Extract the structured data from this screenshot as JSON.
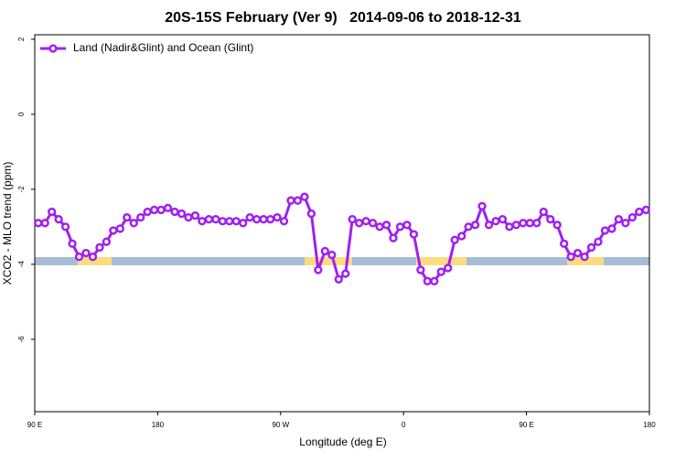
{
  "chart_data": {
    "type": "line",
    "title": "20S-15S February (Ver 9)   2014-09-06 to 2018-12-31",
    "x_label": "Longitude (deg E)",
    "y_label": "XCO2 - MLO trend (ppm)",
    "xlim": [
      90,
      540
    ],
    "xticks": [
      {
        "value": 90,
        "label": "90 E"
      },
      180,
      {
        "value": 270,
        "label": "90 W"
      },
      {
        "value": 360,
        "label": "0"
      },
      {
        "value": 450,
        "label": "90 E"
      },
      {
        "value": 540,
        "label": "180"
      }
    ],
    "ylim": [
      -7.93,
      2.12
    ],
    "yticks": [
      2,
      0,
      -2,
      -4,
      -6
    ],
    "legend": "top-left",
    "x": [
      92.5,
      97.5,
      102.5,
      107.5,
      112.5,
      117.5,
      122.5,
      127.5,
      132.5,
      137.5,
      142.5,
      147.5,
      152.5,
      157.5,
      162.5,
      167.5,
      172.5,
      177.5,
      182.5,
      187.5,
      192.5,
      197.5,
      202.5,
      207.5,
      212.5,
      217.5,
      222.5,
      227.5,
      232.5,
      237.5,
      242.5,
      247.5,
      252.5,
      257.5,
      262.5,
      267.5,
      272.5,
      277.5,
      282.5,
      287.5,
      292.5,
      297.5,
      302.5,
      307.5,
      312.5,
      317.5,
      322.5,
      327.5,
      332.5,
      337.5,
      342.5,
      347.5,
      352.5,
      357.5,
      362.5,
      367.5,
      372.5,
      377.5,
      382.5,
      387.5,
      392.5,
      397.5,
      402.5,
      407.5,
      412.5,
      417.5,
      422.5,
      427.5,
      432.5,
      437.5,
      442.5,
      447.5,
      452.5,
      457.5,
      462.5,
      467.5,
      472.5,
      477.5,
      482.5,
      487.5,
      492.5,
      497.5,
      502.5,
      507.5,
      512.5,
      517.5,
      522.5,
      527.5,
      532.5,
      537.5
    ],
    "series": [
      {
        "name": "Land (Nadir&Glint) and Ocean (Glint)",
        "color": "#a020f0",
        "values": [
          -2.9,
          -2.9,
          -2.6,
          -2.8,
          -3.0,
          -3.45,
          -3.8,
          -3.7,
          -3.8,
          -3.55,
          -3.4,
          -3.1,
          -3.05,
          -2.75,
          -2.9,
          -2.75,
          -2.6,
          -2.55,
          -2.55,
          -2.5,
          -2.6,
          -2.65,
          -2.75,
          -2.7,
          -2.85,
          -2.8,
          -2.8,
          -2.85,
          -2.85,
          -2.85,
          -2.9,
          -2.75,
          -2.8,
          -2.8,
          -2.8,
          -2.75,
          -2.85,
          -2.3,
          -2.3,
          -2.2,
          -2.65,
          -4.15,
          -3.65,
          -3.75,
          -4.4,
          -4.25,
          -2.8,
          -2.9,
          -2.85,
          -2.9,
          -3.0,
          -2.95,
          -3.3,
          -3.0,
          -2.95,
          -3.2,
          -4.15,
          -4.45,
          -4.45,
          -4.2,
          -4.1,
          -3.35,
          -3.25,
          -3.0,
          -2.95,
          -2.45,
          -2.95,
          -2.85,
          -2.8,
          -3.0,
          -2.95,
          -2.9,
          -2.9,
          -2.9,
          -2.6,
          -2.8,
          -2.95,
          -3.45,
          -3.8,
          -3.7,
          -3.8,
          -3.55,
          -3.4,
          -3.1,
          -3.05,
          -2.8,
          -2.9,
          -2.75,
          -2.6,
          -2.55
        ]
      }
    ]
  }
}
